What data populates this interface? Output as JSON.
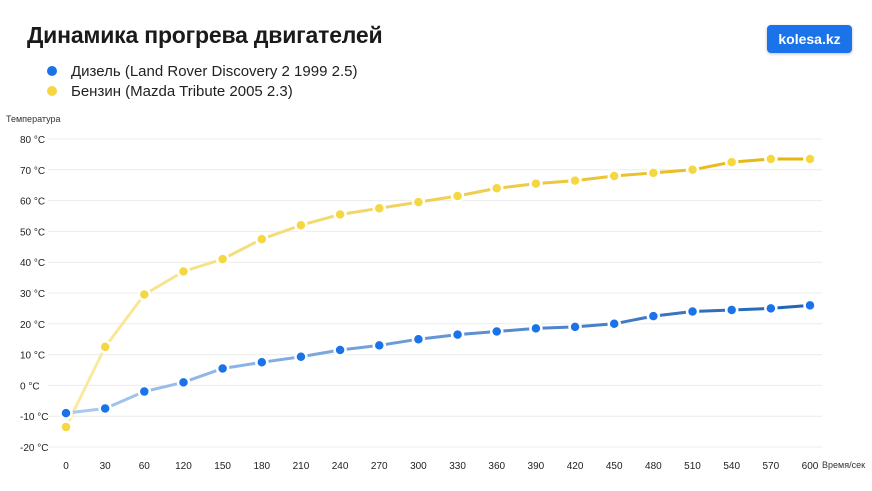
{
  "title": "Динамика прогрева двигателей",
  "brand": "kolesa.kz",
  "chart_data": {
    "type": "line",
    "ylabel": "Температура",
    "xlabel": "Время/сек",
    "x": [
      0,
      30,
      60,
      120,
      150,
      180,
      210,
      240,
      270,
      300,
      330,
      360,
      390,
      420,
      450,
      480,
      510,
      540,
      570,
      600
    ],
    "ylim": [
      -20,
      80
    ],
    "yticks": [
      "80 °C",
      "70 °C",
      "60 °C",
      "50 °C",
      "40 °C",
      "30 °C",
      "20 °C",
      "10 °C",
      "0 °C",
      "-10 °C",
      "-20 °C"
    ],
    "ytick_values": [
      80,
      70,
      60,
      50,
      40,
      30,
      20,
      10,
      0,
      -10,
      -20
    ],
    "grid": true,
    "legend_position": "top-left",
    "series": [
      {
        "name": "Дизель (Land Rover Discovery 2 1999 2.5)",
        "color": "#1a73e8",
        "line_color_start": "#a8c8f0",
        "line_color_end": "#2264b8",
        "values": [
          -9,
          -7.5,
          -2,
          1,
          5.5,
          7.5,
          9.3,
          11.5,
          13,
          15,
          16.5,
          17.5,
          18.5,
          19,
          20,
          22.5,
          24,
          24.5,
          25,
          26
        ]
      },
      {
        "name": "Бензин (Mazda Tribute 2005 2.3)",
        "color": "#f5d742",
        "line_color_start": "#faeaa0",
        "line_color_end": "#e5b60e",
        "values": [
          -13.5,
          12.5,
          29.5,
          37,
          41,
          47.5,
          52,
          55.5,
          57.5,
          59.5,
          61.5,
          64,
          65.5,
          66.5,
          68,
          69,
          70,
          72.5,
          73.5,
          73.5
        ]
      }
    ]
  }
}
